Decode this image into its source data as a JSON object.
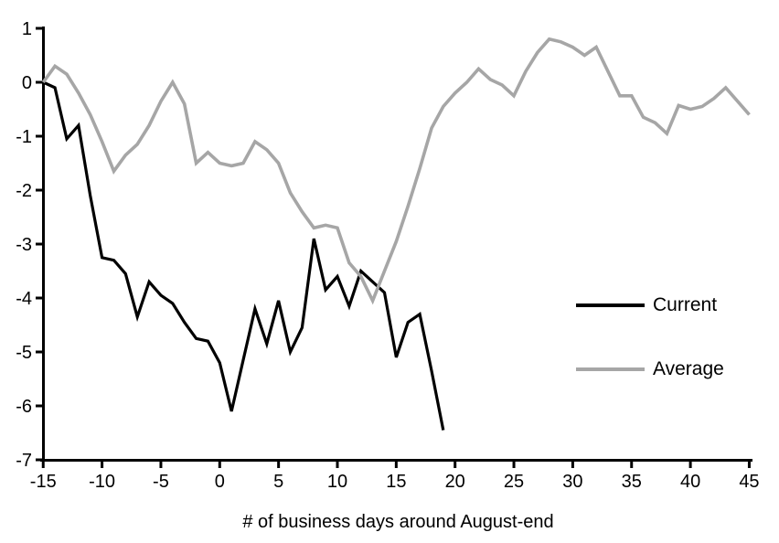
{
  "chart_data": {
    "type": "line",
    "title": "",
    "xlabel": "# of business days around August-end",
    "ylabel": "",
    "xlim": [
      -15,
      45
    ],
    "ylim": [
      -7,
      1
    ],
    "x_ticks": [
      -15,
      -10,
      -5,
      0,
      5,
      10,
      15,
      20,
      25,
      30,
      35,
      40,
      45
    ],
    "y_ticks": [
      1,
      0,
      -1,
      -2,
      -3,
      -4,
      -5,
      -6,
      -7
    ],
    "grid": false,
    "legend_position": "right-middle",
    "axis_color": "#000000",
    "series": [
      {
        "name": "Current",
        "color": "#000000",
        "stroke_width": 3.2,
        "x": [
          -15,
          -14,
          -13,
          -12,
          -11,
          -10,
          -9,
          -8,
          -7,
          -6,
          -5,
          -4,
          -3,
          -2,
          -1,
          0,
          1,
          2,
          3,
          4,
          5,
          6,
          7,
          8,
          9,
          10,
          11,
          12,
          13,
          14,
          15,
          16,
          17,
          18,
          19
        ],
        "values": [
          0,
          -0.1,
          -1.05,
          -0.8,
          -2.1,
          -3.25,
          -3.3,
          -3.55,
          -4.35,
          -3.7,
          -3.95,
          -4.1,
          -4.45,
          -4.75,
          -4.8,
          -5.2,
          -6.1,
          -5.15,
          -4.2,
          -4.85,
          -4.05,
          -5.0,
          -4.55,
          -2.9,
          -3.85,
          -3.6,
          -4.15,
          -3.5,
          -3.7,
          -3.9,
          -5.1,
          -4.45,
          -4.3,
          -5.35,
          -6.45
        ]
      },
      {
        "name": "Average",
        "color": "#a6a6a6",
        "stroke_width": 3.6,
        "x": [
          -15,
          -14,
          -13,
          -12,
          -11,
          -10,
          -9,
          -8,
          -7,
          -6,
          -5,
          -4,
          -3,
          -2,
          -1,
          0,
          1,
          2,
          3,
          4,
          5,
          6,
          7,
          8,
          9,
          10,
          11,
          12,
          13,
          14,
          15,
          16,
          17,
          18,
          19,
          20,
          21,
          22,
          23,
          24,
          25,
          26,
          27,
          28,
          29,
          30,
          31,
          32,
          33,
          34,
          35,
          36,
          37,
          38,
          39,
          40,
          41,
          42,
          43,
          44,
          45
        ],
        "values": [
          0,
          0.3,
          0.15,
          -0.2,
          -0.6,
          -1.1,
          -1.65,
          -1.35,
          -1.15,
          -0.8,
          -0.35,
          0,
          -0.4,
          -1.5,
          -1.3,
          -1.5,
          -1.55,
          -1.5,
          -1.1,
          -1.25,
          -1.5,
          -2.05,
          -2.4,
          -2.7,
          -2.65,
          -2.7,
          -3.35,
          -3.6,
          -4.05,
          -3.5,
          -2.95,
          -2.3,
          -1.6,
          -0.85,
          -0.45,
          -0.2,
          0,
          0.25,
          0.05,
          -0.05,
          -0.25,
          0.2,
          0.55,
          0.8,
          0.75,
          0.65,
          0.5,
          0.65,
          0.2,
          -0.25,
          -0.25,
          -0.65,
          -0.75,
          -0.95,
          -0.43,
          -0.5,
          -0.45,
          -0.3,
          -0.1,
          -0.35,
          -0.6
        ]
      }
    ]
  },
  "legend": {
    "current_label": "Current",
    "average_label": "Average"
  }
}
